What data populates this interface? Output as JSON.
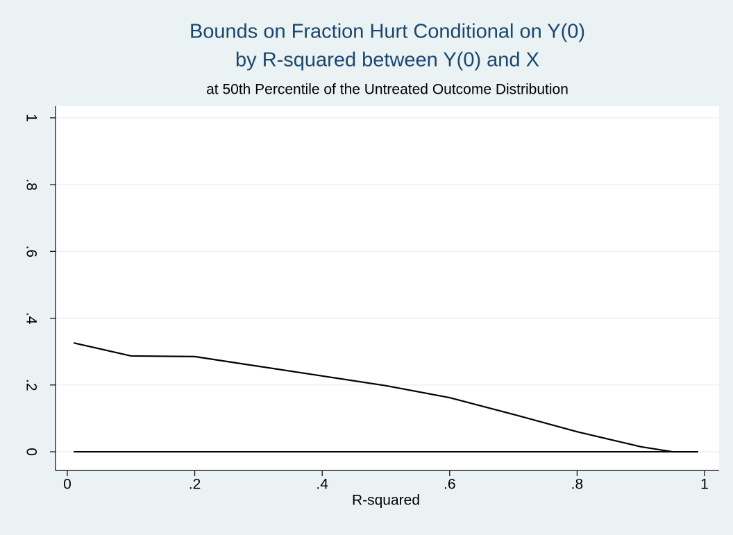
{
  "chart_data": {
    "type": "line",
    "title": [
      "Bounds on Fraction Hurt Conditional on Y(0)",
      "by R-squared between Y(0) and X"
    ],
    "subtitle": "at 50th Percentile of the Untreated Outcome Distribution",
    "x_label": "R-squared",
    "x": [
      0.01,
      0.1,
      0.2,
      0.3,
      0.4,
      0.5,
      0.6,
      0.7,
      0.8,
      0.9,
      0.95,
      0.99
    ],
    "series": [
      {
        "color": "#000000",
        "values": [
          0.326,
          0.287,
          0.285,
          0.256,
          0.227,
          0.198,
          0.162,
          0.112,
          0.06,
          0.015,
          0.0,
          0.0
        ]
      },
      {
        "color": "#000000",
        "values": [
          0,
          0,
          0,
          0,
          0,
          0,
          0,
          0,
          0,
          0,
          0,
          0
        ]
      }
    ],
    "xlim": [
      -0.0185,
      1.0229
    ],
    "ylim": [
      -0.056,
      1.035
    ],
    "xticks": [
      0,
      {
        "value": 0.2,
        "label": ".2"
      },
      {
        "value": 0.4,
        "label": ".4"
      },
      {
        "value": 0.6,
        "label": ".6"
      },
      {
        "value": 0.8,
        "label": ".8"
      },
      1
    ],
    "yticks": [
      0,
      {
        "value": 0.2,
        "label": ".2"
      },
      {
        "value": 0.4,
        "label": ".4"
      },
      {
        "value": 0.6,
        "label": ".6"
      },
      {
        "value": 0.8,
        "label": ".8"
      },
      1
    ],
    "grid": true
  }
}
